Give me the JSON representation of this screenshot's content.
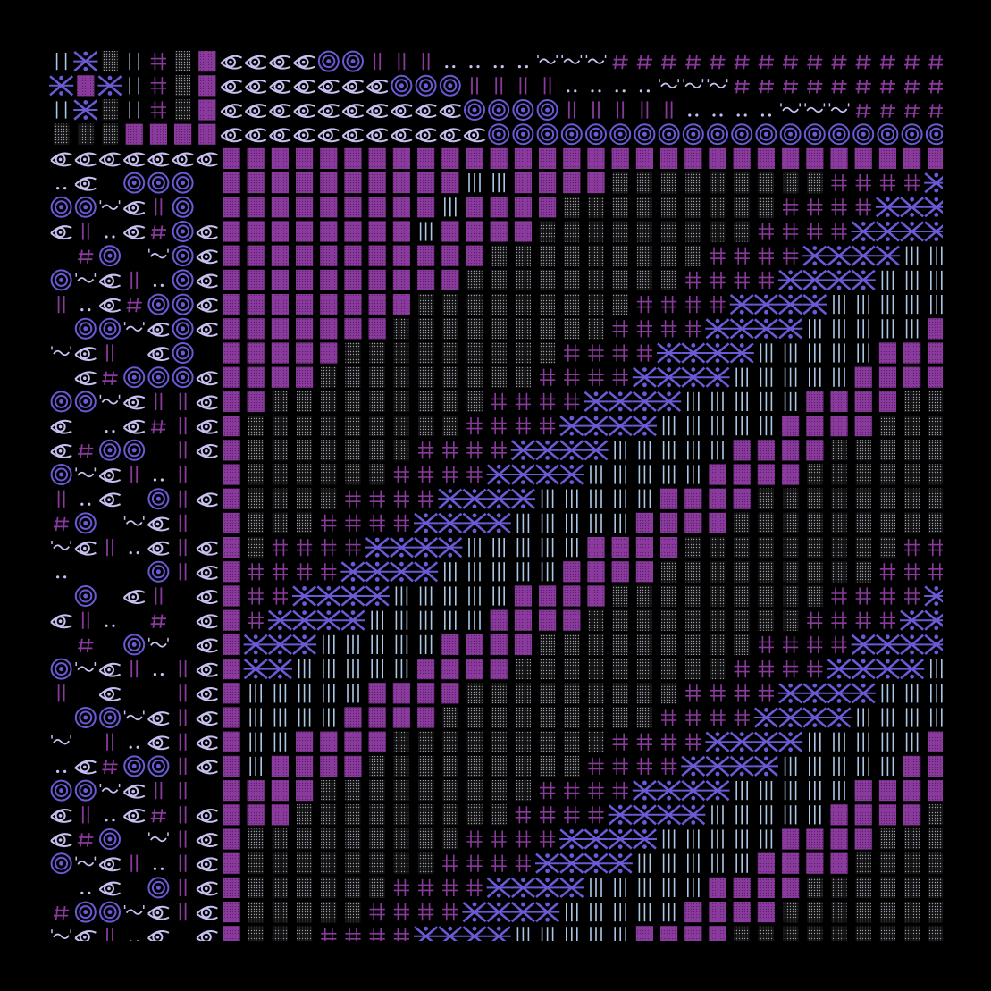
{
  "artwork": {
    "background": "#000000",
    "palette": {
      "purple": "#8a3a9c",
      "purple_dot": "#5a1f6a",
      "violet": "#6a5ad6",
      "light_blue": "#aac8e6",
      "pale_lavender": "#c8c0f0",
      "gray_dots": "#9a9aa8",
      "gray_dark": "#2a2a30"
    },
    "tile_types": [
      "x-cross-icon",
      "concentric-circle-icon",
      "eye-icon",
      "vertical-bars-icon",
      "purple-cross-icon",
      "hash-icon",
      "tilde-wave-icon",
      "double-dot-icon",
      "dotted-gray-block",
      "purple-dotted-block"
    ]
  }
}
